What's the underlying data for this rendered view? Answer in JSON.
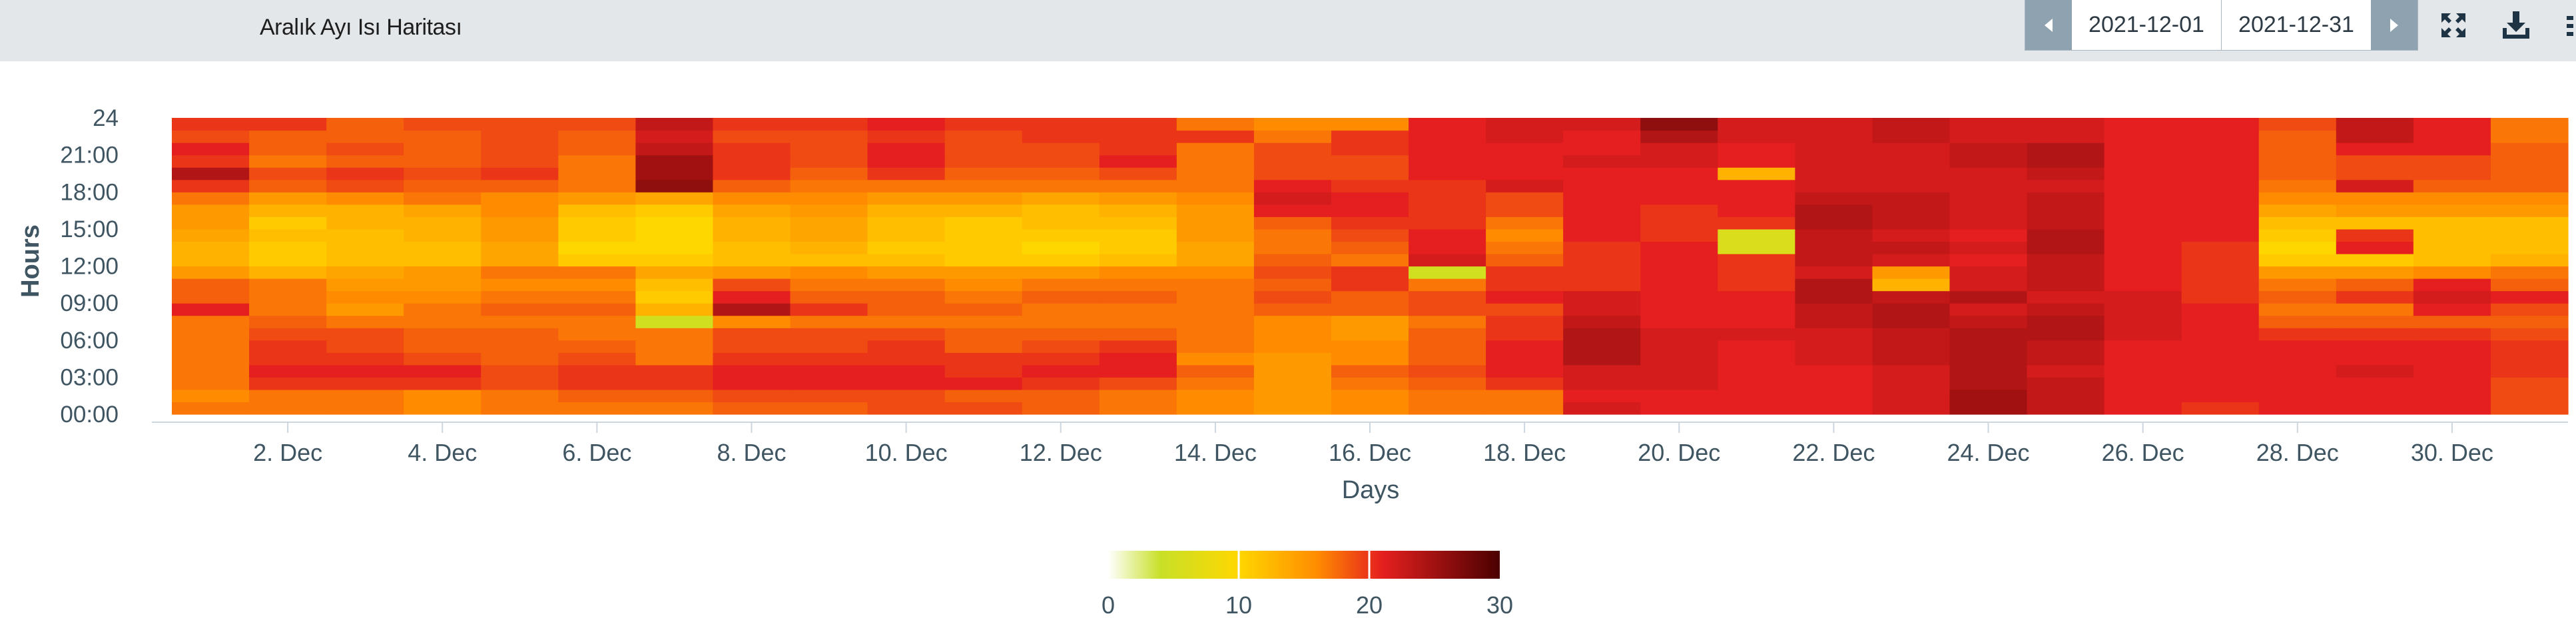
{
  "header": {
    "title": "Aralık Ayı Isı Haritası",
    "date_start": "2021-12-01",
    "date_end": "2021-12-31",
    "prev_icon": "caret-left-icon",
    "next_icon": "caret-right-icon",
    "fullscreen_icon": "fullscreen-icon",
    "download_icon": "download-icon"
  },
  "chart_data": {
    "type": "heatmap",
    "title": "",
    "xlabel": "Days",
    "ylabel": "Hours",
    "x_categories": [
      1,
      2,
      3,
      4,
      5,
      6,
      7,
      8,
      9,
      10,
      11,
      12,
      13,
      14,
      15,
      16,
      17,
      18,
      19,
      20,
      21,
      22,
      23,
      24,
      25,
      26,
      27,
      28,
      29,
      30,
      31
    ],
    "x_tick_labels": [
      "2. Dec",
      "4. Dec",
      "6. Dec",
      "8. Dec",
      "10. Dec",
      "12. Dec",
      "14. Dec",
      "16. Dec",
      "18. Dec",
      "20. Dec",
      "22. Dec",
      "24. Dec",
      "26. Dec",
      "28. Dec",
      "30. Dec"
    ],
    "y_categories": [
      0,
      1,
      2,
      3,
      4,
      5,
      6,
      7,
      8,
      9,
      10,
      11,
      12,
      13,
      14,
      15,
      16,
      17,
      18,
      19,
      20,
      21,
      22,
      23
    ],
    "y_tick_labels": [
      "00:00",
      "03:00",
      "06:00",
      "09:00",
      "12:00",
      "15:00",
      "18:00",
      "21:00",
      "24"
    ],
    "color_scale": {
      "min": 0,
      "max": 30,
      "stops": [
        {
          "value": 0,
          "color": "#ffffff"
        },
        {
          "value": 4,
          "color": "#c8e028"
        },
        {
          "value": 10,
          "color": "#ffd700"
        },
        {
          "value": 16,
          "color": "#ff8c00"
        },
        {
          "value": 21,
          "color": "#e51f1f"
        },
        {
          "value": 30,
          "color": "#4b0000"
        }
      ],
      "tick_labels": [
        "0",
        "10",
        "20",
        "30"
      ]
    },
    "values": [
      [
        17,
        17,
        17,
        16,
        17,
        17,
        17,
        18,
        18,
        19,
        19,
        18,
        17,
        16,
        15,
        16,
        17,
        17,
        22,
        21,
        21,
        21,
        22,
        25,
        23,
        21,
        20,
        21,
        21,
        21,
        19
      ],
      [
        16,
        17,
        17,
        16,
        17,
        18,
        18,
        19,
        19,
        19,
        18,
        18,
        17,
        16,
        15,
        16,
        17,
        17,
        21,
        21,
        21,
        21,
        22,
        25,
        23,
        21,
        21,
        21,
        21,
        21,
        19
      ],
      [
        17,
        20,
        20,
        20,
        19,
        20,
        20,
        21,
        21,
        21,
        21,
        20,
        19,
        17,
        15,
        17,
        18,
        20,
        22,
        22,
        21,
        21,
        22,
        24,
        23,
        21,
        21,
        21,
        21,
        21,
        19
      ],
      [
        17,
        21,
        21,
        21,
        19,
        20,
        20,
        21,
        21,
        21,
        20,
        21,
        21,
        18,
        15,
        18,
        19,
        21,
        22,
        22,
        21,
        21,
        22,
        24,
        22,
        21,
        21,
        21,
        22,
        21,
        20
      ],
      [
        17,
        20,
        20,
        19,
        18,
        19,
        17,
        20,
        20,
        20,
        20,
        20,
        21,
        16,
        15,
        16,
        18,
        21,
        24,
        22,
        21,
        22,
        23,
        24,
        23,
        21,
        21,
        21,
        21,
        21,
        20
      ],
      [
        17,
        20,
        19,
        18,
        18,
        18,
        17,
        19,
        19,
        20,
        18,
        19,
        20,
        17,
        16,
        16,
        18,
        21,
        24,
        22,
        21,
        22,
        23,
        24,
        23,
        21,
        21,
        21,
        21,
        21,
        20
      ],
      [
        17,
        19,
        19,
        18,
        18,
        17,
        17,
        19,
        19,
        19,
        18,
        18,
        18,
        17,
        16,
        15,
        18,
        20,
        24,
        22,
        22,
        22,
        23,
        24,
        24,
        22,
        21,
        20,
        20,
        20,
        19
      ],
      [
        17,
        18,
        17,
        17,
        17,
        17,
        5,
        16,
        17,
        17,
        17,
        17,
        17,
        17,
        16,
        15,
        17,
        20,
        23,
        21,
        21,
        23,
        24,
        23,
        24,
        22,
        21,
        18,
        18,
        18,
        18
      ],
      [
        21,
        17,
        15,
        17,
        18,
        18,
        13,
        24,
        20,
        18,
        18,
        17,
        17,
        17,
        18,
        18,
        19,
        19,
        22,
        21,
        21,
        23,
        24,
        22,
        23,
        22,
        21,
        17,
        17,
        21,
        19
      ],
      [
        18,
        17,
        16,
        16,
        17,
        17,
        11,
        21,
        18,
        18,
        17,
        18,
        18,
        17,
        19,
        18,
        19,
        21,
        22,
        21,
        21,
        24,
        23,
        24,
        22,
        22,
        20,
        18,
        20,
        22,
        21
      ],
      [
        18,
        17,
        15,
        15,
        16,
        16,
        12,
        19,
        17,
        17,
        16,
        17,
        17,
        17,
        18,
        20,
        17,
        20,
        20,
        21,
        20,
        24,
        13,
        22,
        23,
        21,
        20,
        17,
        18,
        21,
        18
      ],
      [
        15,
        13,
        14,
        15,
        17,
        17,
        14,
        15,
        16,
        15,
        15,
        15,
        16,
        16,
        19,
        20,
        5,
        20,
        20,
        21,
        20,
        22,
        15,
        22,
        23,
        21,
        20,
        15,
        15,
        16,
        17
      ],
      [
        13,
        11,
        12,
        12,
        14,
        11,
        11,
        12,
        12,
        12,
        11,
        11,
        12,
        14,
        18,
        17,
        22,
        18,
        20,
        21,
        20,
        23,
        22,
        21,
        23,
        21,
        20,
        11,
        11,
        12,
        13
      ],
      [
        13,
        11,
        12,
        12,
        14,
        10,
        10,
        12,
        13,
        11,
        11,
        10,
        11,
        14,
        17,
        18,
        21,
        17,
        20,
        21,
        6,
        23,
        23,
        22,
        24,
        21,
        20,
        10,
        21,
        12,
        12
      ],
      [
        14,
        12,
        12,
        13,
        15,
        11,
        10,
        13,
        14,
        12,
        11,
        11,
        11,
        15,
        17,
        19,
        21,
        16,
        21,
        20,
        6,
        23,
        22,
        21,
        24,
        21,
        21,
        11,
        20,
        12,
        12
      ],
      [
        15,
        11,
        13,
        13,
        15,
        11,
        10,
        13,
        14,
        12,
        11,
        12,
        12,
        15,
        18,
        20,
        20,
        17,
        21,
        20,
        20,
        24,
        23,
        22,
        23,
        21,
        21,
        12,
        12,
        12,
        12
      ],
      [
        15,
        13,
        13,
        14,
        16,
        12,
        11,
        14,
        15,
        13,
        13,
        12,
        13,
        15,
        21,
        21,
        20,
        19,
        21,
        20,
        21,
        24,
        23,
        22,
        23,
        21,
        21,
        14,
        15,
        15,
        15
      ],
      [
        17,
        15,
        16,
        17,
        16,
        15,
        14,
        16,
        16,
        15,
        15,
        14,
        15,
        16,
        22,
        21,
        20,
        19,
        21,
        21,
        21,
        23,
        23,
        22,
        23,
        21,
        21,
        16,
        16,
        16,
        16
      ],
      [
        20,
        18,
        19,
        18,
        18,
        17,
        26,
        18,
        17,
        17,
        17,
        17,
        17,
        17,
        21,
        20,
        20,
        22,
        21,
        21,
        21,
        22,
        22,
        22,
        22,
        21,
        21,
        17,
        22,
        18,
        18
      ],
      [
        24,
        19,
        20,
        19,
        20,
        17,
        25,
        20,
        18,
        20,
        18,
        18,
        19,
        17,
        19,
        19,
        21,
        21,
        21,
        21,
        13,
        22,
        22,
        22,
        23,
        21,
        21,
        18,
        19,
        19,
        18
      ],
      [
        20,
        17,
        18,
        18,
        19,
        17,
        25,
        20,
        19,
        21,
        19,
        19,
        21,
        17,
        19,
        19,
        21,
        21,
        22,
        22,
        21,
        22,
        22,
        23,
        24,
        21,
        21,
        18,
        19,
        19,
        18
      ],
      [
        21,
        18,
        19,
        18,
        19,
        18,
        23,
        20,
        19,
        21,
        19,
        19,
        20,
        17,
        19,
        20,
        21,
        21,
        21,
        22,
        21,
        22,
        22,
        23,
        24,
        21,
        21,
        18,
        21,
        21,
        18
      ],
      [
        19,
        18,
        18,
        18,
        19,
        18,
        22,
        19,
        19,
        20,
        19,
        20,
        20,
        20,
        17,
        20,
        21,
        22,
        21,
        24,
        22,
        22,
        23,
        22,
        22,
        21,
        21,
        18,
        23,
        21,
        17
      ],
      [
        20,
        20,
        18,
        19,
        19,
        19,
        23,
        20,
        20,
        21,
        20,
        20,
        20,
        17,
        16,
        16,
        21,
        22,
        22,
        26,
        22,
        22,
        23,
        22,
        22,
        21,
        21,
        19,
        23,
        21,
        17
      ]
    ]
  }
}
